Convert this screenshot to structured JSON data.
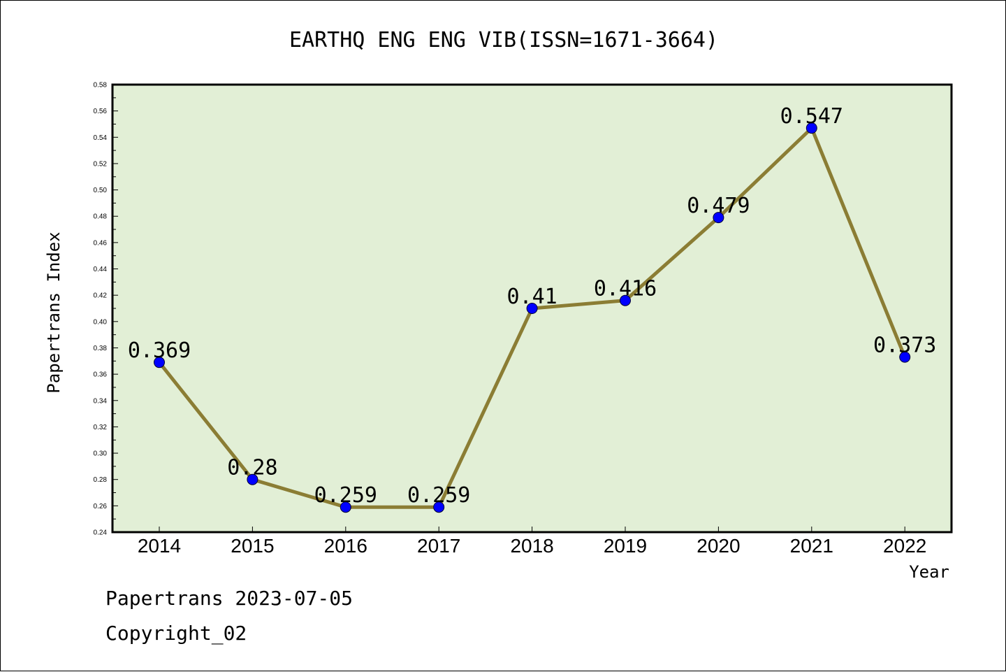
{
  "colors": {
    "plot_bg": "#e2efd6",
    "line": "#8b7d34",
    "marker": "#0000ff"
  },
  "footer": {
    "line1": "Papertrans 2023-07-05",
    "line2": "Copyright_02"
  },
  "chart_data": {
    "type": "line",
    "title": "EARTHQ ENG ENG VIB(ISSN=1671-3664)",
    "xlabel": "Year",
    "ylabel": "Papertrans Index",
    "categories": [
      "2014",
      "2015",
      "2016",
      "2017",
      "2018",
      "2019",
      "2020",
      "2021",
      "2022"
    ],
    "values": [
      0.369,
      0.28,
      0.259,
      0.259,
      0.41,
      0.416,
      0.479,
      0.547,
      0.373
    ],
    "data_labels": [
      "0.369",
      "0.28",
      "0.259",
      "0.259",
      "0.41",
      "0.416",
      "0.479",
      "0.547",
      "0.373"
    ],
    "ylim": [
      0.24,
      0.58
    ],
    "yticks": [
      "0.24",
      "0.26",
      "0.28",
      "0.30",
      "0.32",
      "0.34",
      "0.36",
      "0.38",
      "0.40",
      "0.42",
      "0.44",
      "0.46",
      "0.48",
      "0.50",
      "0.52",
      "0.54",
      "0.56",
      "0.58"
    ],
    "grid": false,
    "legend": "none"
  }
}
